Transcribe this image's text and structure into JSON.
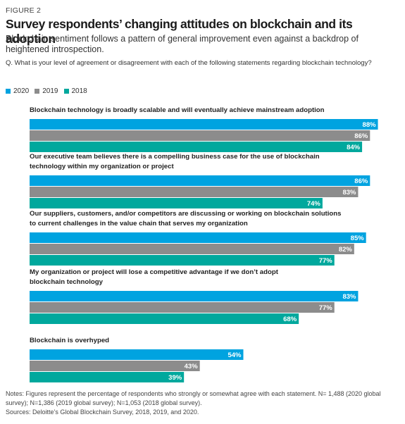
{
  "figure_label": "FIGURE 2",
  "chart_data": {
    "type": "bar",
    "orientation": "horizontal",
    "title": "Survey respondents’ changing attitudes on blockchain and its adoption",
    "subtitle": "Blockchain sentiment follows a pattern of general improvement even against a backdrop of heightened introspection.",
    "question": "Q. What is your level of agreement or disagreement with each of the following statements regarding blockchain technology?",
    "legend_position": "top-left",
    "grid": false,
    "xlim": [
      0,
      100
    ],
    "value_suffix": "%",
    "series": [
      {
        "name": "2020",
        "color": "#00A3E0"
      },
      {
        "name": "2019",
        "color": "#8C8C8C"
      },
      {
        "name": "2018",
        "color": "#00A89D"
      }
    ],
    "categories": [
      {
        "label_lines": [
          "Blockchain technology is broadly scalable and will eventually achieve mainstream adoption"
        ],
        "values": [
          88,
          86,
          84
        ]
      },
      {
        "label_lines": [
          "Our executive team believes there is a compelling business case for the use of blockchain",
          "technology within my organization or project"
        ],
        "values": [
          86,
          83,
          74
        ]
      },
      {
        "label_lines": [
          "Our suppliers, customers, and/or competitors are discussing or working on blockchain solutions",
          "to current challenges in the value chain that serves my organization"
        ],
        "values": [
          85,
          82,
          77
        ]
      },
      {
        "label_lines": [
          "My organization or project will lose a competitive advantage if we don’t adopt",
          "blockchain technology"
        ],
        "values": [
          83,
          77,
          68
        ]
      },
      {
        "label_lines": [
          "Blockchain is overhyped"
        ],
        "values": [
          54,
          43,
          39
        ]
      }
    ]
  },
  "notes": "Notes: Figures represent the percentage of respondents who strongly or somewhat agree with each statement. N= 1,488 (2020 global survey); N=1,386 (2019 global survey); N=1,053 (2018 global survey).",
  "sources": "Sources: Deloitte’s Global Blockchain Survey, 2018, 2019, and 2020."
}
